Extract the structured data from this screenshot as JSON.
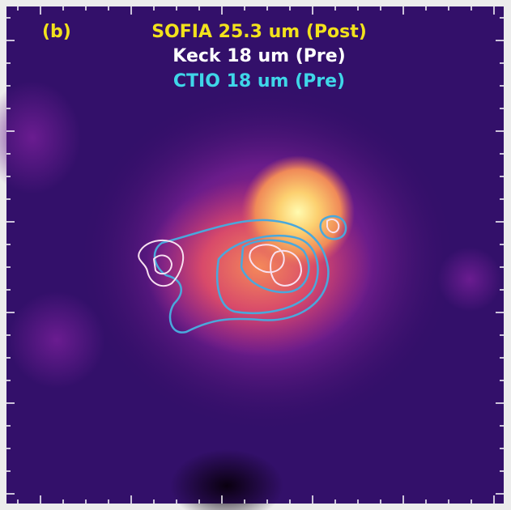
{
  "panel_label": {
    "text": "(b)",
    "color": "#f2e21c"
  },
  "legend": [
    {
      "text": "SOFIA 25.3 um (Post)",
      "color": "#f2e21c"
    },
    {
      "text": "Keck 18 um (Pre)",
      "color": "#ffffff"
    },
    {
      "text": "CTIO 18 um (Pre)",
      "color": "#3fd6e8"
    }
  ]
}
